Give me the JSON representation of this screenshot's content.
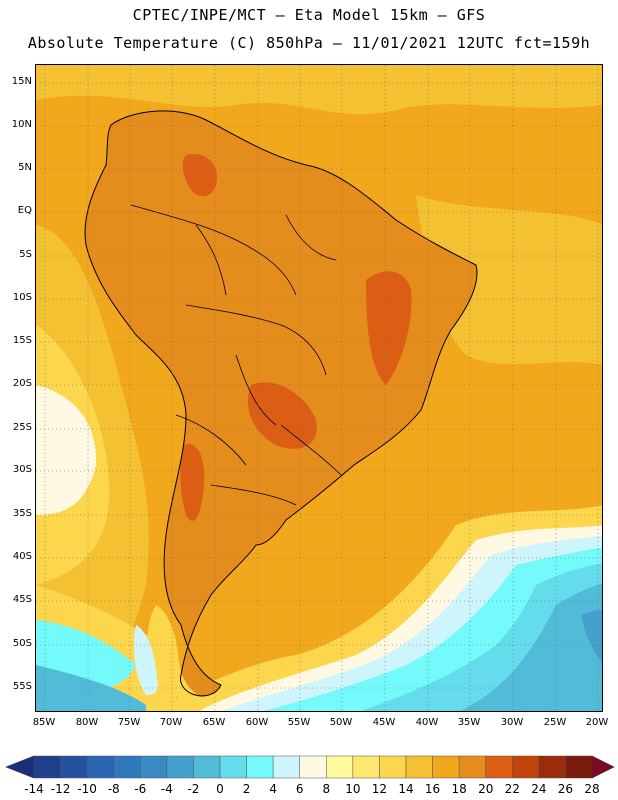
{
  "header": {
    "line1": "CPTEC/INPE/MCT –  Eta Model 15km – GFS",
    "line2": "Absolute Temperature (C) 850hPa – 11/01/2021 12UTC fct=159h"
  },
  "map": {
    "region": "South America",
    "variable": "Absolute Temperature (C) 850hPa",
    "lat_range": [
      -58,
      17
    ],
    "lon_range": [
      -86,
      -20
    ],
    "lat_labels": [
      "15N",
      "10N",
      "5N",
      "EQ",
      "5S",
      "10S",
      "15S",
      "20S",
      "25S",
      "30S",
      "35S",
      "40S",
      "45S",
      "50S",
      "55S"
    ],
    "lon_labels": [
      "85W",
      "80W",
      "75W",
      "70W",
      "65W",
      "60W",
      "55W",
      "50W",
      "45W",
      "40W",
      "35W",
      "30W",
      "25W",
      "20W"
    ],
    "ocean_color": "#f2a81c",
    "land_color": "#e48c1c"
  },
  "colorbar": {
    "labels": [
      "-14",
      "-12",
      "-10",
      "-8",
      "-6",
      "-4",
      "-2",
      "0",
      "2",
      "4",
      "6",
      "8",
      "10",
      "12",
      "14",
      "16",
      "18",
      "20",
      "22",
      "24",
      "26",
      "28"
    ],
    "colors": [
      "#1e3f8c",
      "#2452a0",
      "#2a66b4",
      "#3078bc",
      "#3a8ac4",
      "#44a0cc",
      "#52bcd8",
      "#64dceb",
      "#74fafa",
      "#cff5fc",
      "#fff8e2",
      "#fffb9c",
      "#fde770",
      "#fcd74e",
      "#f4c132",
      "#f2a81c",
      "#e48c1c",
      "#dc5e14",
      "#c0440c",
      "#9c2c08",
      "#7a1a0c"
    ],
    "low_arrow_color": "#1a2f7c",
    "high_arrow_color": "#7a0a28"
  }
}
